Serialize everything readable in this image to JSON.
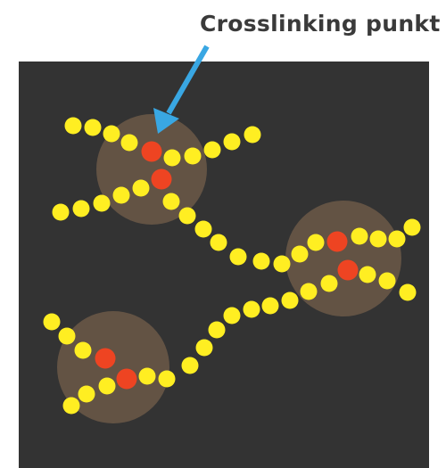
{
  "annotation": {
    "label": "Crosslinking  punkt"
  },
  "colors": {
    "background": "#333333",
    "chain_bead": "#ffee22",
    "crosslink_bead": "#ee4422",
    "crosslink_halo": "#8a6e52",
    "arrow": "#39a7e3"
  },
  "crosslink_count": 3
}
